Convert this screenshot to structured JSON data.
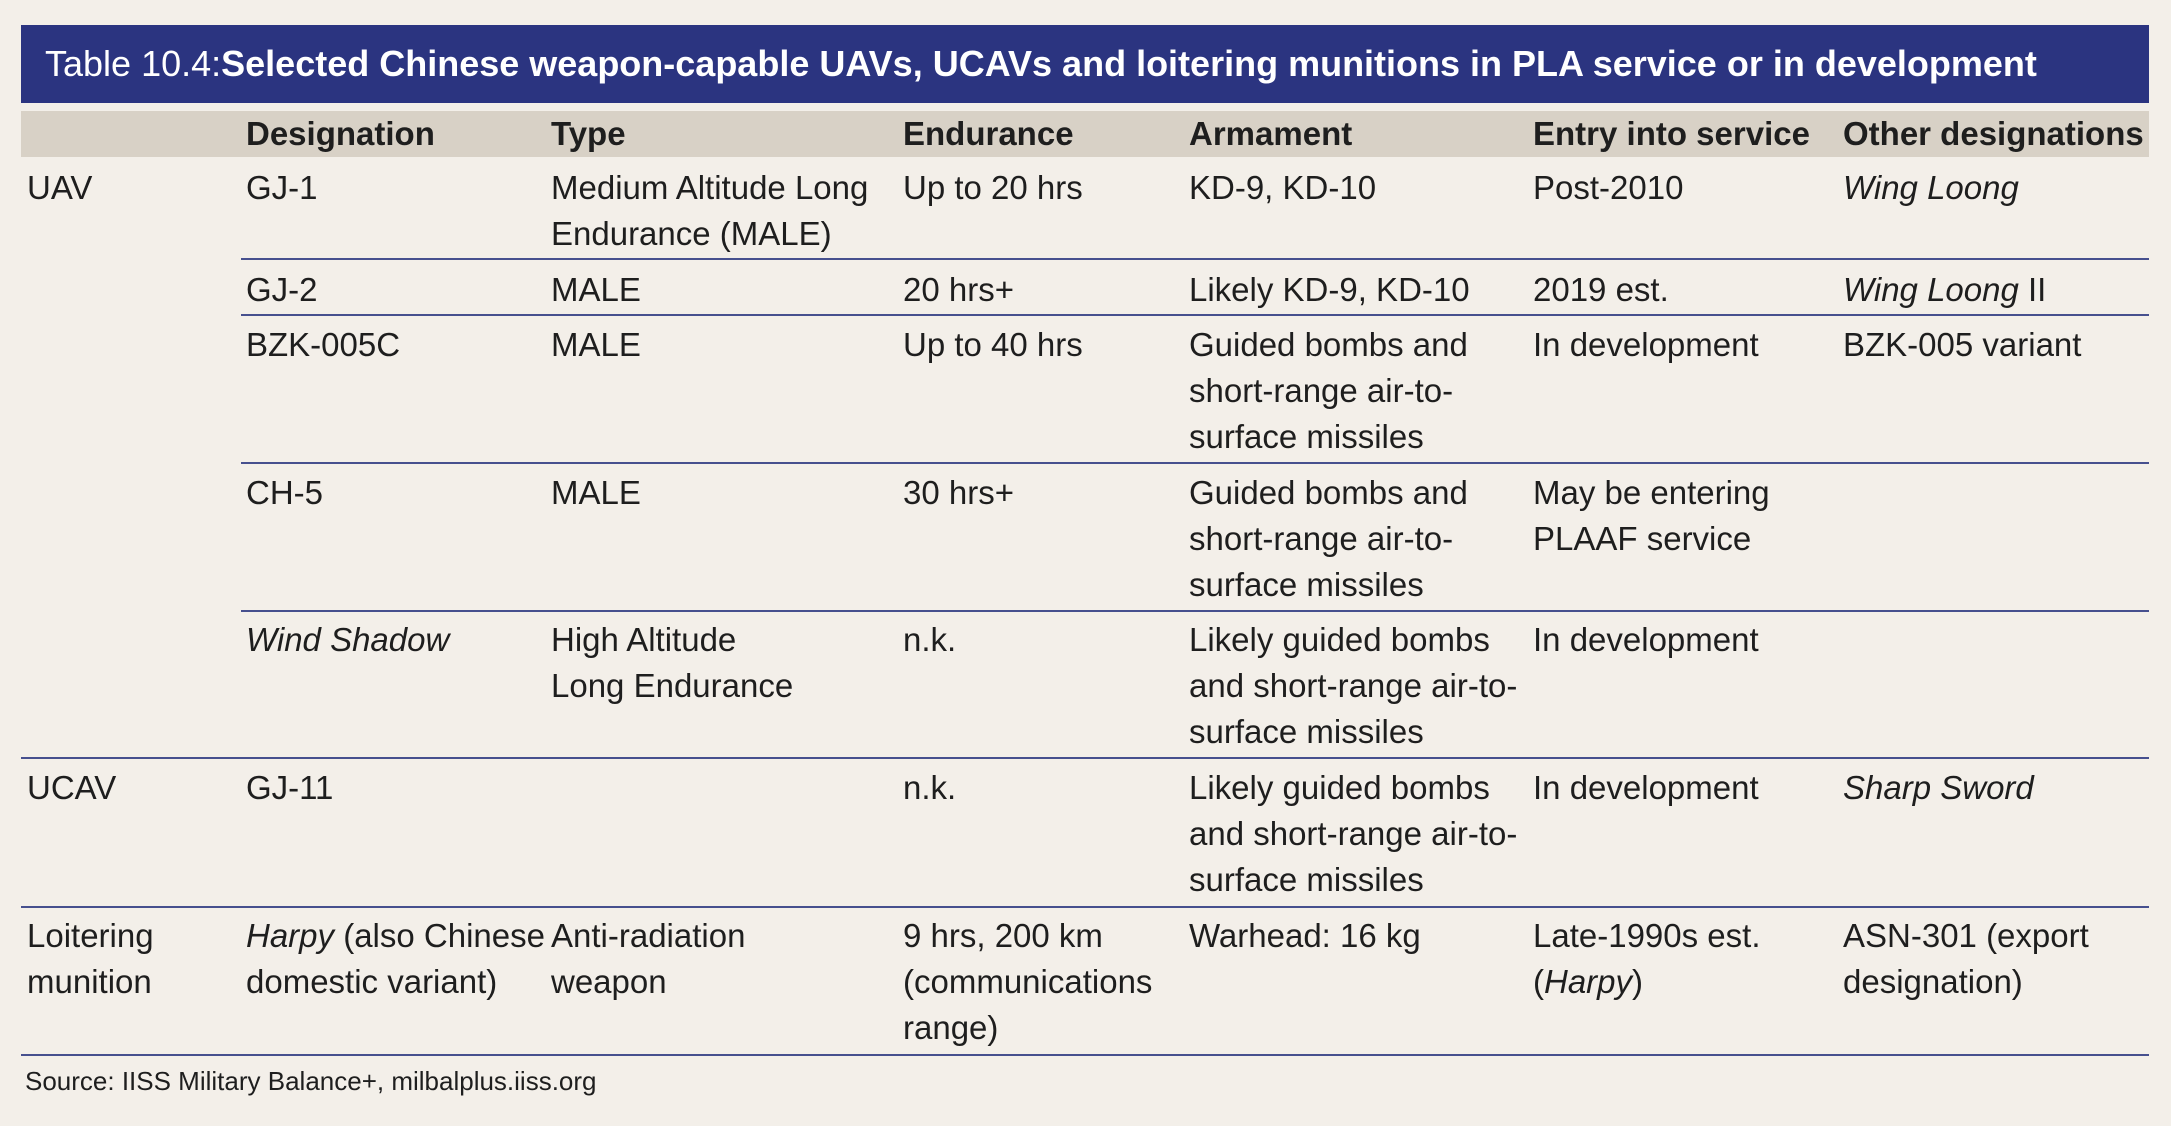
{
  "title": {
    "prefix": "Table 10.4: ",
    "text": "Selected Chinese weapon-capable UAVs, UCAVs and loitering munitions in PLA service or in development"
  },
  "columns": [
    "",
    "Designation",
    "Type",
    "Endurance",
    "Armament",
    "Entry into service",
    "Other designations"
  ],
  "groups": {
    "uav": "UAV",
    "ucav": "UCAV",
    "loitering": "Loitering\nmunition"
  },
  "rows": [
    {
      "designation": "GJ-1",
      "type": "Medium Altitude Long\nEndurance (MALE)",
      "endurance": "Up to 20 hrs",
      "armament": "KD-9, KD-10",
      "entry": "Post-2010",
      "other_italic": "Wing Loong",
      "other": ""
    },
    {
      "designation": "GJ-2",
      "type": "MALE",
      "endurance": "20 hrs+",
      "armament": "Likely KD-9, KD-10",
      "entry": "2019 est.",
      "other_italic": "Wing Loong",
      "other": " II"
    },
    {
      "designation": "BZK-005C",
      "type": "MALE",
      "endurance": "Up to 40 hrs",
      "armament": "Guided bombs and\nshort-range air-to-\nsurface missiles",
      "entry": "In development",
      "other": "BZK-005 variant"
    },
    {
      "designation": "CH-5",
      "type": "MALE",
      "endurance": "30 hrs+",
      "armament": "Guided bombs and\nshort-range air-to-\nsurface missiles",
      "entry": "May be entering\nPLAAF service",
      "other": ""
    },
    {
      "designation_italic": "Wind Shadow",
      "type": "High Altitude\nLong Endurance",
      "endurance": "n.k.",
      "armament": "Likely guided bombs\nand short-range air-to-\nsurface missiles",
      "entry": "In development",
      "other": ""
    },
    {
      "designation": "GJ-11",
      "type": "",
      "endurance": "n.k.",
      "armament": "Likely guided bombs\nand short-range air-to-\nsurface missiles",
      "entry": "In development",
      "other_italic": "Sharp Sword"
    },
    {
      "designation_italic": "Harpy",
      "designation_rest_1": " (also Chinese",
      "designation_rest_2": "domestic variant)",
      "type": "Anti-radiation\nweapon",
      "endurance": "9 hrs, 200 km\n(communications\nrange)",
      "armament": "Warhead: 16 kg",
      "entry_1": "Late-1990s est.",
      "entry_2_open": "(",
      "entry_2_italic": "Harpy",
      "entry_2_close": ")",
      "other": "ASN-301 (export\ndesignation)"
    }
  ],
  "source": "Source: IISS Military Balance+, milbalplus.iiss.org"
}
